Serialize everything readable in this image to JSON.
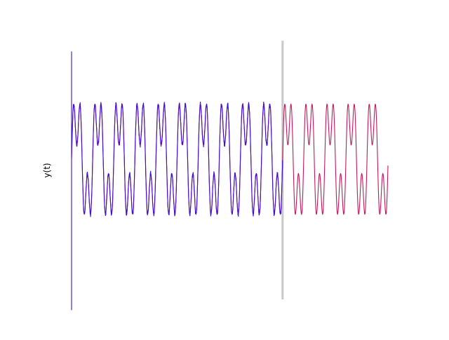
{
  "chart_data": {
    "type": "line",
    "title": "",
    "xlabel": "",
    "ylabel": "y(t)",
    "grid": false,
    "legend": "none",
    "axes_visible": false,
    "x_range": [
      0,
      1
    ],
    "y_range": [
      -1.8,
      1.8
    ],
    "signal": {
      "period": 0.0667,
      "components": [
        {
          "amplitude": 0.62,
          "harmonic": 1,
          "phase": 0.0
        },
        {
          "amplitude": 0.42,
          "harmonic": 3,
          "phase": 0.0
        }
      ],
      "offset": 0.15
    },
    "series": [
      {
        "role": "reference",
        "color": "#c2185b",
        "x_start": 0.0,
        "x_end": 1.0
      },
      {
        "role": "estimate",
        "color": "#3b0fd6",
        "x_start": 0.0,
        "x_end": 0.667,
        "initial_spike": [
          1.65,
          -1.95
        ]
      }
    ],
    "vertical_marker": {
      "x": 0.667,
      "color": "#c8c8c8"
    }
  }
}
